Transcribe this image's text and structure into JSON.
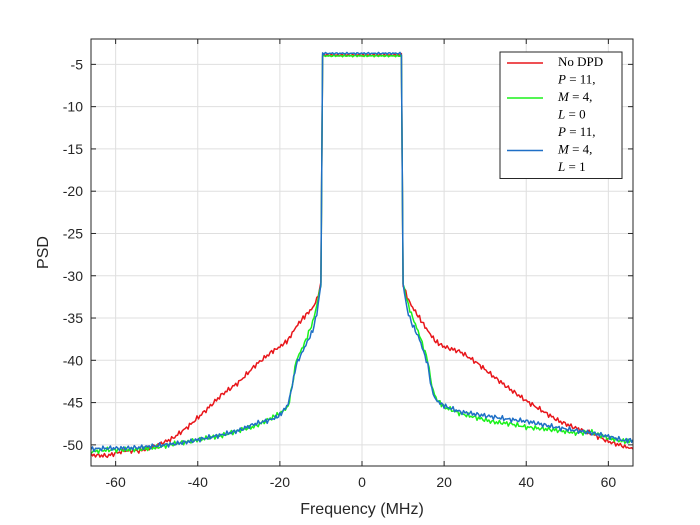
{
  "chart_data": {
    "type": "line",
    "title": "",
    "xlabel": "Frequency (MHz)",
    "ylabel": "PSD",
    "xlim": [
      -66,
      66
    ],
    "ylim": [
      -52.5,
      -2
    ],
    "xticks": [
      -60,
      -40,
      -20,
      0,
      20,
      40,
      60
    ],
    "yticks": [
      -50,
      -45,
      -40,
      -35,
      -30,
      -25,
      -20,
      -15,
      -10,
      -5
    ],
    "grid": true,
    "legend_position": "top-right",
    "legend": [
      {
        "series": 0,
        "lines": [
          {
            "text": "No DPD"
          }
        ]
      },
      {
        "series": 1,
        "lines": [
          {
            "parts": [
              {
                "t": "P",
                "it": true
              },
              {
                "t": " = 11,"
              }
            ]
          },
          {
            "parts": [
              {
                "t": "M",
                "it": true
              },
              {
                "t": " = 4,"
              }
            ]
          },
          {
            "parts": [
              {
                "t": "L",
                "it": true
              },
              {
                "t": " = 0"
              }
            ]
          }
        ]
      },
      {
        "series": 2,
        "lines": [
          {
            "parts": [
              {
                "t": "P",
                "it": true
              },
              {
                "t": " = 11,"
              }
            ]
          },
          {
            "parts": [
              {
                "t": "M",
                "it": true
              },
              {
                "t": " = 4,"
              }
            ]
          },
          {
            "parts": [
              {
                "t": "L",
                "it": true
              },
              {
                "t": " = 1"
              }
            ]
          }
        ]
      }
    ],
    "series": [
      {
        "color": "#e8161b",
        "x": [
          -66,
          -62,
          -58,
          -54,
          -50,
          -46,
          -42,
          -38,
          -34,
          -30,
          -26,
          -22,
          -20,
          -18,
          -16,
          -14,
          -12,
          -11,
          -10,
          -9.6,
          9.6,
          10,
          11,
          12,
          14,
          16,
          18,
          20,
          24,
          28,
          32,
          36,
          40,
          44,
          48,
          52,
          56,
          60,
          64,
          66
        ],
        "y": [
          -51.2,
          -51.3,
          -50.7,
          -50.7,
          -50.1,
          -49.2,
          -47.7,
          -45.9,
          -44.0,
          -42.6,
          -40.6,
          -39.0,
          -38.4,
          -37.6,
          -36.0,
          -34.8,
          -33.8,
          -32.8,
          -31.0,
          -3.9,
          -3.9,
          -31.0,
          -32.5,
          -33.5,
          -35.0,
          -36.5,
          -37.8,
          -38.4,
          -39.0,
          -40.3,
          -41.9,
          -43.4,
          -44.8,
          -46.0,
          -47.2,
          -48.0,
          -48.7,
          -49.6,
          -50.2,
          -50.5
        ]
      },
      {
        "color": "#1bf21b",
        "x": [
          -66,
          -62,
          -58,
          -54,
          -50,
          -46,
          -42,
          -38,
          -34,
          -30,
          -26,
          -22,
          -20,
          -18,
          -17,
          -16,
          -14,
          -12,
          -11,
          -10,
          -9.6,
          9.6,
          10,
          11,
          12,
          14,
          16,
          17,
          18,
          20,
          24,
          28,
          32,
          36,
          40,
          44,
          48,
          52,
          56,
          60,
          64,
          66
        ],
        "y": [
          -50.8,
          -50.6,
          -50.6,
          -50.5,
          -50.3,
          -49.9,
          -49.6,
          -49.2,
          -48.9,
          -48.3,
          -47.8,
          -46.8,
          -46.3,
          -45.5,
          -43.0,
          -40.0,
          -38.0,
          -35.5,
          -33.5,
          -31.0,
          -4.0,
          -4.0,
          -31.0,
          -33.0,
          -34.5,
          -37.0,
          -40.0,
          -43.0,
          -44.5,
          -45.5,
          -46.3,
          -46.8,
          -47.3,
          -47.5,
          -47.9,
          -48.1,
          -48.3,
          -48.6,
          -48.5,
          -49.2,
          -49.6,
          -49.5
        ]
      },
      {
        "color": "#1f6fc6",
        "x": [
          -66,
          -62,
          -58,
          -54,
          -50,
          -46,
          -42,
          -38,
          -34,
          -30,
          -26,
          -22,
          -20,
          -18,
          -17,
          -16,
          -14,
          -12,
          -11,
          -10,
          -9.6,
          9.6,
          10,
          11,
          12,
          14,
          16,
          17,
          18,
          20,
          24,
          28,
          32,
          36,
          40,
          44,
          48,
          52,
          56,
          60,
          64,
          66
        ],
        "y": [
          -50.5,
          -50.4,
          -50.4,
          -50.3,
          -50.1,
          -49.9,
          -49.6,
          -49.2,
          -48.8,
          -48.3,
          -47.5,
          -47.0,
          -46.5,
          -45.2,
          -43.0,
          -40.5,
          -38.5,
          -36.5,
          -34.5,
          -31.0,
          -3.7,
          -3.7,
          -31.0,
          -34.0,
          -35.5,
          -37.5,
          -40.5,
          -43.5,
          -44.7,
          -45.4,
          -46.1,
          -46.4,
          -46.7,
          -47.0,
          -47.2,
          -47.6,
          -48.0,
          -48.3,
          -48.6,
          -49.0,
          -49.5,
          -49.4
        ]
      }
    ]
  }
}
